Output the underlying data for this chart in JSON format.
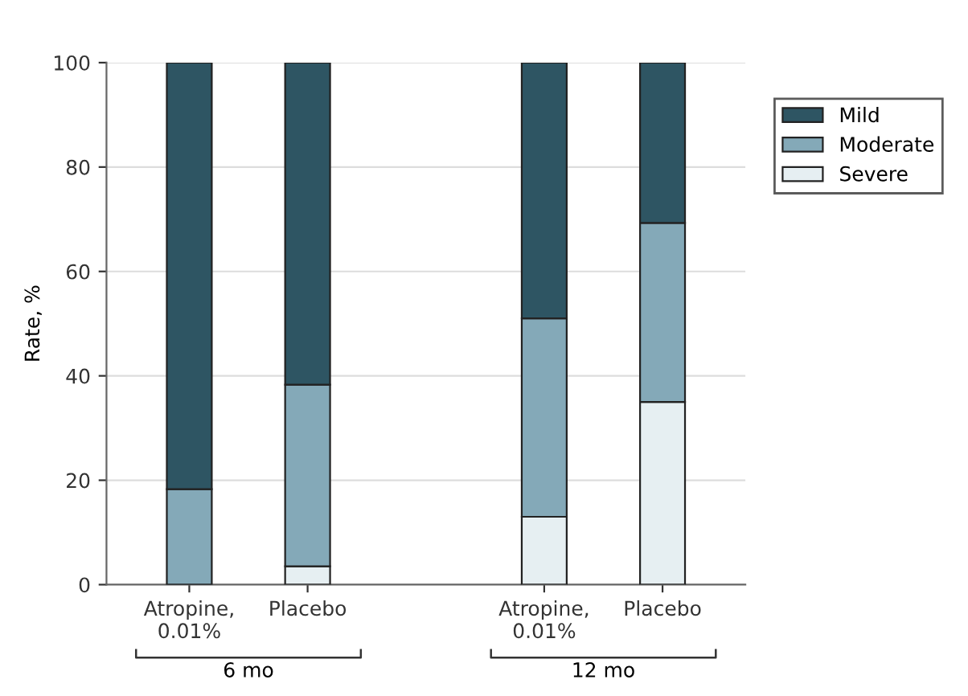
{
  "chart_data": {
    "type": "bar",
    "stacked": true,
    "ylabel": "Rate, %",
    "categories": [
      "Atropine,\n0.01%",
      "Placebo",
      null,
      "Atropine,\n0.01%",
      "Placebo"
    ],
    "series": [
      {
        "name": "Severe",
        "color": "#e6eff2",
        "values": [
          0,
          3.5,
          null,
          13,
          35
        ]
      },
      {
        "name": "Moderate",
        "color": "#84a9b8",
        "values": [
          18.3,
          34.8,
          null,
          38,
          34.3
        ]
      },
      {
        "name": "Mild",
        "color": "#2e5563",
        "values": [
          81.7,
          61.7,
          null,
          49,
          30.7
        ]
      }
    ],
    "ylim": [
      0,
      100
    ],
    "yticks": [
      0,
      20,
      40,
      60,
      80,
      100
    ],
    "grid": "y",
    "legend": "right",
    "annotations": [
      "6 mo",
      "12 mo"
    ]
  }
}
